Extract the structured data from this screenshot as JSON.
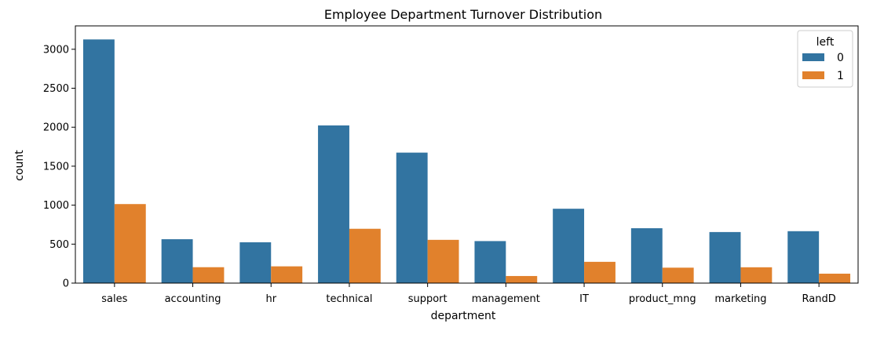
{
  "chart_data": {
    "type": "bar",
    "title": "Employee Department Turnover Distribution",
    "xlabel": "department",
    "ylabel": "count",
    "categories": [
      "sales",
      "accounting",
      "hr",
      "technical",
      "support",
      "management",
      "IT",
      "product_mng",
      "marketing",
      "RandD"
    ],
    "series": [
      {
        "name": "0",
        "color": "#3274a1",
        "values": [
          3126,
          563,
          524,
          2023,
          1674,
          539,
          954,
          704,
          655,
          666
        ]
      },
      {
        "name": "1",
        "color": "#e1812c",
        "values": [
          1014,
          204,
          215,
          697,
          555,
          91,
          273,
          198,
          203,
          121
        ]
      }
    ],
    "ylim": [
      0,
      3300
    ],
    "yticks": [
      0,
      500,
      1000,
      1500,
      2000,
      2500,
      3000
    ],
    "legend": {
      "title": "left",
      "position": "top-right"
    },
    "grid": false
  }
}
